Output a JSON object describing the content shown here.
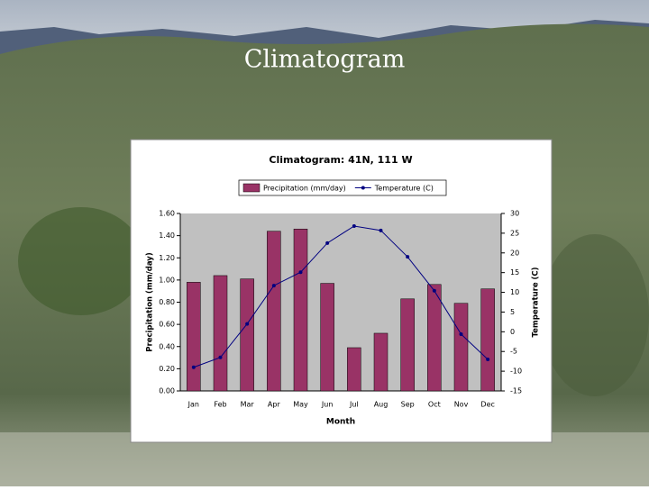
{
  "slide_title": "Climatogram",
  "chart_data": {
    "type": "bar-line",
    "title": "Climatogram: 41N, 111 W",
    "xlabel": "Month",
    "ylabel": "Precipitation (mm/day)",
    "y2label": "Temperature (C)",
    "categories": [
      "Jan",
      "Feb",
      "Mar",
      "Apr",
      "May",
      "Jun",
      "Jul",
      "Aug",
      "Sep",
      "Oct",
      "Nov",
      "Dec"
    ],
    "series": [
      {
        "name": "Precipitation (mm/day)",
        "type": "bar",
        "color": "#993366",
        "values": [
          0.98,
          1.04,
          1.01,
          1.44,
          1.46,
          0.97,
          0.39,
          0.52,
          0.83,
          0.96,
          0.79,
          0.92
        ]
      },
      {
        "name": "Temperature (C)",
        "type": "line",
        "axis": "y2",
        "color": "#000080",
        "values": [
          -9,
          -6.5,
          2,
          11.7,
          15.1,
          22.5,
          26.8,
          25.7,
          19,
          10.4,
          -0.6,
          -7
        ]
      }
    ],
    "ylim": [
      0,
      1.6
    ],
    "yticks": [
      {
        "value": 0,
        "label": "0.00"
      },
      {
        "value": 0.2,
        "label": "0.20"
      },
      {
        "value": 0.4,
        "label": "0.40"
      },
      {
        "value": 0.6,
        "label": "0.60"
      },
      {
        "value": 0.8,
        "label": "0.80"
      },
      {
        "value": 1,
        "label": "1.00"
      },
      {
        "value": 1.2,
        "label": "1.20"
      },
      {
        "value": 1.4,
        "label": "1.40"
      },
      {
        "value": 1.6,
        "label": "1.60"
      }
    ],
    "y2lim": [
      -15,
      30
    ],
    "y2ticks": [
      -15,
      -10,
      -5,
      0,
      5,
      10,
      15,
      20,
      25,
      30
    ],
    "legend": "top"
  }
}
